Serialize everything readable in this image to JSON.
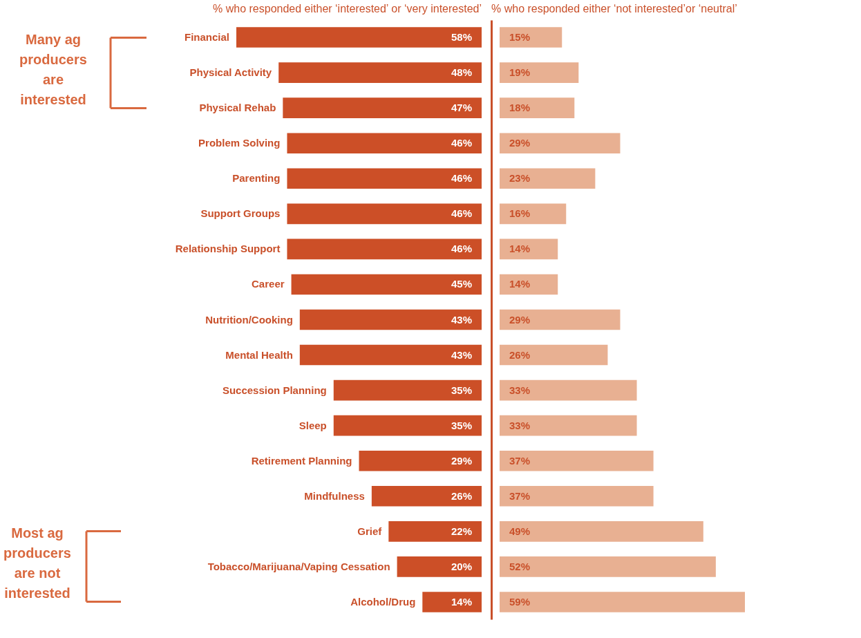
{
  "chart_data": [
    {
      "type": "bar",
      "orientation": "horizontal",
      "title": "% who responded either ‘interested’ or ‘very interested’",
      "categories": [
        "Financial",
        "Physical Activity",
        "Physical Rehab",
        "Problem Solving",
        "Parenting",
        "Support Groups",
        "Relationship Support",
        "Career",
        "Nutrition/Cooking",
        "Mental Health",
        "Succession Planning",
        "Sleep",
        "Retirement Planning",
        "Mindfulness",
        "Grief",
        "Tobacco/Marijuana/Vaping Cessation",
        "Alcohol/Drug"
      ],
      "series": [
        {
          "color": "#cc4f27",
          "values": [
            58,
            48,
            47,
            46,
            46,
            46,
            46,
            45,
            43,
            43,
            35,
            35,
            29,
            26,
            22,
            20,
            14
          ],
          "value_labels": [
            "58%",
            "48%",
            "47%",
            "46%",
            "46%",
            "46%",
            "46%",
            "45%",
            "43%",
            "43%",
            "35%",
            "35%",
            "29%",
            "26%",
            "22%",
            "20%",
            "14%"
          ]
        }
      ],
      "tick_labels": "y",
      "annotations": [
        "Many ag\nproducers\nare\ninterested",
        "Most ag\nproducers\nare not\ninterested"
      ]
    },
    {
      "type": "bar",
      "orientation": "horizontal",
      "title": "% who responded either ‘not interested’or ‘neutral’",
      "categories": [
        null,
        null,
        null,
        null,
        null,
        null,
        null,
        null,
        null,
        null,
        null,
        null,
        null,
        null,
        null,
        null,
        null
      ],
      "series": [
        {
          "color": "#e8b092",
          "values": [
            15,
            19,
            18,
            29,
            23,
            16,
            14,
            14,
            29,
            26,
            33,
            33,
            37,
            37,
            49,
            52,
            59
          ],
          "value_labels": [
            "15%",
            "19%",
            "18%",
            "29%",
            "23%",
            "16%",
            "14%",
            "14%",
            "29%",
            "26%",
            "33%",
            "33%",
            "37%",
            "37%",
            "49%",
            "52%",
            "59%"
          ]
        }
      ],
      "tick_labels": false
    }
  ]
}
